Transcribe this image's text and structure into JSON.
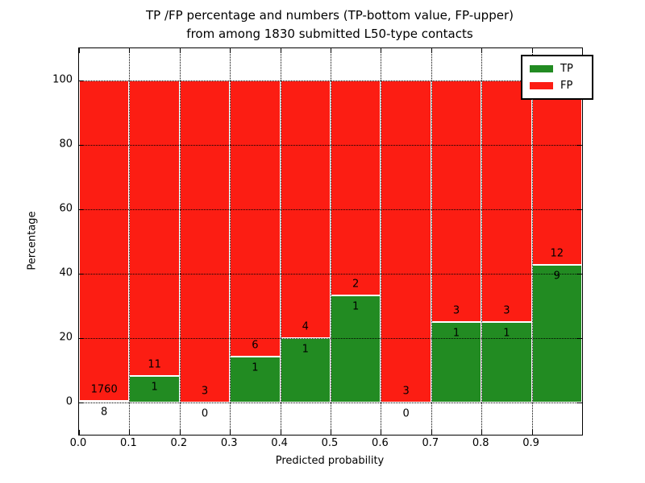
{
  "figure": {
    "title_line1": "TP /FP percentage and numbers (TP-bottom value, FP-upper)",
    "title_line2": "from among 1830 submitted L50-type contacts"
  },
  "chart_data": {
    "type": "bar",
    "stacked": true,
    "normalized": "percent-of-bin (TP+FP = 100%)",
    "title": "TP /FP percentage and numbers (TP-bottom value, FP-upper) from among 1830 submitted L50-type contacts",
    "xlabel": "Predicted probability",
    "ylabel": "Percentage",
    "total_contacts": 1830,
    "bin_width": 0.1,
    "bin_starts": [
      0.0,
      0.1,
      0.2,
      0.3,
      0.4,
      0.5,
      0.6,
      0.7,
      0.8,
      0.9
    ],
    "series": [
      {
        "name": "TP",
        "values": [
          8,
          1,
          0,
          1,
          1,
          1,
          0,
          1,
          1,
          9
        ]
      },
      {
        "name": "FP",
        "values": [
          1760,
          11,
          3,
          6,
          4,
          2,
          3,
          3,
          3,
          12
        ]
      }
    ],
    "tp_percent_approx": [
      0.45,
      8.33,
      0.0,
      14.29,
      20.0,
      33.33,
      0.0,
      25.0,
      25.0,
      42.86
    ],
    "xticks": [
      "0.0",
      "0.1",
      "0.2",
      "0.3",
      "0.4",
      "0.5",
      "0.6",
      "0.7",
      "0.8",
      "0.9"
    ],
    "yticks": [
      "0",
      "20",
      "40",
      "60",
      "80",
      "100"
    ],
    "xlim": [
      0.0,
      1.0
    ],
    "ylim": [
      -10,
      110
    ],
    "grid": "dotted, at x ticks and y ticks, drawn over bars",
    "legend_entries": [
      "TP",
      "FP"
    ],
    "legend_position": "upper right",
    "colors": {
      "tp": "#228b22",
      "fp": "#fc1d13",
      "bar_edge": "#ffffff",
      "text": "#000000"
    },
    "annotation_rule": "FP count just above green top, TP count just below green top, centered per bin"
  }
}
